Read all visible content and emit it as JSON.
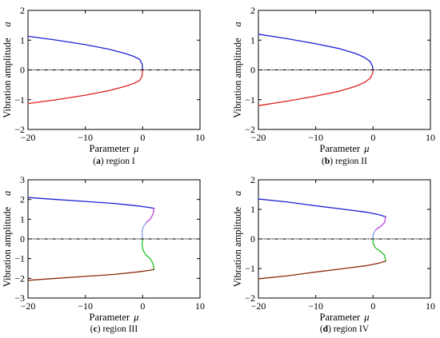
{
  "chart_data": [
    {
      "id": "a",
      "type": "line",
      "caption_letter": "a",
      "caption_text": " region I",
      "xlabel": "Parameter",
      "xlabel_symbol": "μ",
      "ylabel": "Vibration amplitude",
      "ylabel_symbol": "a",
      "xlim": [
        -20,
        10
      ],
      "ylim": [
        -2,
        2
      ],
      "xticks": [
        -20,
        -10,
        0,
        10
      ],
      "yticks": [
        -2,
        -1,
        0,
        1,
        2
      ],
      "xtick_labels": [
        "−20",
        "−10",
        "0",
        "10"
      ],
      "ytick_labels": [
        "−2",
        "−1",
        "0",
        "1",
        "2"
      ],
      "series": [
        {
          "color": "#1f1fd6",
          "style": "solid",
          "points": [
            [
              -20,
              1.13
            ],
            [
              -15,
              1.0
            ],
            [
              -10,
              0.85
            ],
            [
              -6,
              0.7
            ],
            [
              -3,
              0.55
            ],
            [
              -1.5,
              0.45
            ],
            [
              -0.5,
              0.35
            ],
            [
              -0.1,
              0.2
            ],
            [
              0,
              0.0
            ]
          ]
        },
        {
          "color": "#e02020",
          "style": "solid",
          "points": [
            [
              0,
              0.0
            ],
            [
              -0.1,
              -0.2
            ],
            [
              -0.5,
              -0.35
            ],
            [
              -1.5,
              -0.45
            ],
            [
              -3,
              -0.55
            ],
            [
              -6,
              -0.7
            ],
            [
              -10,
              -0.85
            ],
            [
              -15,
              -1.0
            ],
            [
              -20,
              -1.13
            ]
          ]
        },
        {
          "color": "#000000",
          "style": "dashdot",
          "points": [
            [
              -20,
              0
            ],
            [
              10,
              0
            ]
          ]
        }
      ]
    },
    {
      "id": "b",
      "type": "line",
      "caption_letter": "b",
      "caption_text": " region II",
      "xlabel": "Parameter",
      "xlabel_symbol": "μ",
      "ylabel": "Vibration amplitude",
      "ylabel_symbol": "a",
      "xlim": [
        -20,
        10
      ],
      "ylim": [
        -2,
        2
      ],
      "xticks": [
        -20,
        -10,
        0,
        10
      ],
      "yticks": [
        -2,
        -1,
        0,
        1,
        2
      ],
      "xtick_labels": [
        "−20",
        "−10",
        "0",
        "10"
      ],
      "ytick_labels": [
        "−2",
        "−1",
        "0",
        "1",
        "2"
      ],
      "series": [
        {
          "color": "#1f1fd6",
          "style": "solid",
          "points": [
            [
              -20,
              1.2
            ],
            [
              -15,
              1.05
            ],
            [
              -10,
              0.88
            ],
            [
              -6,
              0.72
            ],
            [
              -3,
              0.55
            ],
            [
              -1.5,
              0.42
            ],
            [
              -0.5,
              0.28
            ],
            [
              -0.1,
              0.12
            ],
            [
              0,
              0.0
            ]
          ]
        },
        {
          "color": "#e02020",
          "style": "solid",
          "points": [
            [
              0,
              0.0
            ],
            [
              -0.1,
              -0.12
            ],
            [
              -0.5,
              -0.28
            ],
            [
              -1.5,
              -0.42
            ],
            [
              -3,
              -0.55
            ],
            [
              -6,
              -0.72
            ],
            [
              -10,
              -0.88
            ],
            [
              -15,
              -1.05
            ],
            [
              -20,
              -1.2
            ]
          ]
        },
        {
          "color": "#000000",
          "style": "dashdot",
          "points": [
            [
              -20,
              0
            ],
            [
              10,
              0
            ]
          ]
        }
      ]
    },
    {
      "id": "c",
      "type": "line",
      "caption_letter": "c",
      "caption_text": " region III",
      "xlabel": "Parameter",
      "xlabel_symbol": "μ",
      "ylabel": "Vibration amplitude",
      "ylabel_symbol": "a",
      "xlim": [
        -20,
        10
      ],
      "ylim": [
        -3,
        3
      ],
      "xticks": [
        -20,
        -10,
        0,
        10
      ],
      "yticks": [
        -3,
        -2,
        -1,
        0,
        1,
        2,
        3
      ],
      "xtick_labels": [
        "−20",
        "−10",
        "0",
        "10"
      ],
      "ytick_labels": [
        "−3",
        "−2",
        "−1",
        "0",
        "1",
        "2",
        "3"
      ],
      "series": [
        {
          "color": "#1f1fd6",
          "style": "solid",
          "points": [
            [
              -20,
              2.1
            ],
            [
              -15,
              2.0
            ],
            [
              -10,
              1.9
            ],
            [
              -5,
              1.8
            ],
            [
              -1,
              1.68
            ],
            [
              1,
              1.6
            ],
            [
              2,
              1.55
            ]
          ]
        },
        {
          "color": "#c040e0",
          "style": "solid",
          "points": [
            [
              2,
              1.55
            ],
            [
              1.8,
              1.25
            ],
            [
              1.3,
              1.0
            ],
            [
              0.6,
              0.82
            ]
          ]
        },
        {
          "color": "#80a0e8",
          "style": "solid",
          "points": [
            [
              0.6,
              0.82
            ],
            [
              0.1,
              0.6
            ],
            [
              -0.1,
              0.35
            ],
            [
              0,
              0.0
            ]
          ]
        },
        {
          "color": "#20c020",
          "style": "solid",
          "points": [
            [
              0,
              0.0
            ],
            [
              -0.1,
              -0.35
            ],
            [
              0.1,
              -0.6
            ],
            [
              0.6,
              -0.82
            ],
            [
              1.3,
              -1.0
            ],
            [
              1.8,
              -1.25
            ],
            [
              2,
              -1.55
            ]
          ]
        },
        {
          "color": "#8b2a0a",
          "style": "solid",
          "points": [
            [
              2,
              -1.55
            ],
            [
              1,
              -1.6
            ],
            [
              -1,
              -1.68
            ],
            [
              -5,
              -1.8
            ],
            [
              -10,
              -1.9
            ],
            [
              -15,
              -2.0
            ],
            [
              -20,
              -2.1
            ]
          ]
        },
        {
          "color": "#000000",
          "style": "dashdot",
          "points": [
            [
              -20,
              0
            ],
            [
              10,
              0
            ]
          ]
        }
      ]
    },
    {
      "id": "d",
      "type": "line",
      "caption_letter": "d",
      "caption_text": " region IV",
      "xlabel": "Parameter",
      "xlabel_symbol": "μ",
      "ylabel": "Vibration amplitude",
      "ylabel_symbol": "a",
      "xlim": [
        -20,
        10
      ],
      "ylim": [
        -2,
        2
      ],
      "xticks": [
        -20,
        -10,
        0,
        10
      ],
      "yticks": [
        -2,
        -1,
        0,
        1,
        2
      ],
      "xtick_labels": [
        "−20",
        "−10",
        "0",
        "10"
      ],
      "ytick_labels": [
        "−2",
        "−1",
        "0",
        "1",
        "2"
      ],
      "series": [
        {
          "color": "#1f1fd6",
          "style": "solid",
          "points": [
            [
              -20,
              1.35
            ],
            [
              -15,
              1.25
            ],
            [
              -10,
              1.12
            ],
            [
              -5,
              1.0
            ],
            [
              -1,
              0.9
            ],
            [
              1,
              0.82
            ],
            [
              2.2,
              0.75
            ]
          ]
        },
        {
          "color": "#c040e0",
          "style": "solid",
          "points": [
            [
              2.2,
              0.75
            ],
            [
              2.0,
              0.55
            ],
            [
              1.3,
              0.42
            ],
            [
              0.4,
              0.3
            ]
          ]
        },
        {
          "color": "#80a0e8",
          "style": "solid",
          "points": [
            [
              0.4,
              0.3
            ],
            [
              0,
              0.15
            ],
            [
              0,
              0.0
            ]
          ]
        },
        {
          "color": "#20c020",
          "style": "solid",
          "points": [
            [
              0,
              0.0
            ],
            [
              0,
              -0.15
            ],
            [
              0.4,
              -0.3
            ],
            [
              1.3,
              -0.42
            ],
            [
              2.0,
              -0.55
            ],
            [
              2.2,
              -0.75
            ]
          ]
        },
        {
          "color": "#8b2a0a",
          "style": "solid",
          "points": [
            [
              2.2,
              -0.75
            ],
            [
              1,
              -0.82
            ],
            [
              -1,
              -0.9
            ],
            [
              -5,
              -1.0
            ],
            [
              -10,
              -1.12
            ],
            [
              -15,
              -1.25
            ],
            [
              -20,
              -1.35
            ]
          ]
        },
        {
          "color": "#000000",
          "style": "dashdot",
          "points": [
            [
              -20,
              0
            ],
            [
              10,
              0
            ]
          ]
        }
      ]
    }
  ]
}
